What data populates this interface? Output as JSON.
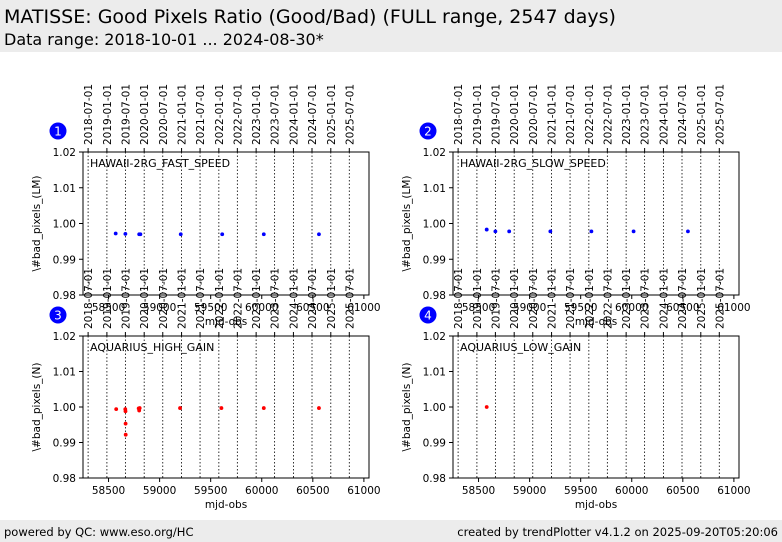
{
  "header": {
    "title": "MATISSE: Good Pixels Ratio (Good/Bad) (FULL range, 2547 days)",
    "subtitle": "Data range: 2018-10-01 ... 2024-08-30*"
  },
  "footer": {
    "left": "powered by QC: www.eso.org/HC",
    "right": "created by trendPlotter v4.1.2 on 2025-09-20T05:20:06"
  },
  "colors": {
    "header_bg": "#ececec",
    "badge": "#0000ff",
    "blue_points": "#0000ff",
    "red_points": "#ff0000"
  },
  "date_ticks": [
    "2018-07-01",
    "2019-01-01",
    "2019-07-01",
    "2020-01-01",
    "2020-07-01",
    "2021-01-01",
    "2021-07-01",
    "2022-01-01",
    "2022-07-01",
    "2023-01-01",
    "2023-07-01",
    "2024-01-01",
    "2024-07-01",
    "2025-01-01",
    "2025-07-01"
  ],
  "date_ticks_mjd": [
    58300,
    58484,
    58665,
    58849,
    59031,
    59215,
    59396,
    59580,
    59761,
    59945,
    60126,
    60310,
    60492,
    60676,
    60857
  ],
  "chart_data": [
    {
      "type": "scatter",
      "panel": "1",
      "label": "HAWAII-2RG_FAST_SPEED",
      "xlabel": "mjd-obs",
      "ylabel": "\\#bad_pixels_(LM)",
      "xlim": [
        58250,
        61050
      ],
      "ylim": [
        0.98,
        1.02
      ],
      "xticks": [
        58500,
        59000,
        59500,
        60000,
        60500,
        61000
      ],
      "yticks": [
        0.98,
        0.99,
        1.0,
        1.01,
        1.02
      ],
      "vlines_mjd": [
        58300,
        58484,
        58665,
        58849,
        59031,
        59215,
        59396,
        59580,
        59761,
        59945,
        60126,
        60310,
        60492,
        60676,
        60857
      ],
      "color": "#0000ff",
      "points": [
        {
          "x": 58570,
          "y": 0.9972
        },
        {
          "x": 58665,
          "y": 0.9971
        },
        {
          "x": 58800,
          "y": 0.997
        },
        {
          "x": 58812,
          "y": 0.997
        },
        {
          "x": 59207,
          "y": 0.997
        },
        {
          "x": 59613,
          "y": 0.997
        },
        {
          "x": 60020,
          "y": 0.997
        },
        {
          "x": 60560,
          "y": 0.997
        }
      ]
    },
    {
      "type": "scatter",
      "panel": "2",
      "label": "HAWAII-2RG_SLOW_SPEED",
      "xlabel": "mjd-obs",
      "ylabel": "\\#bad_pixels_(LM)",
      "xlim": [
        58250,
        61050
      ],
      "ylim": [
        0.98,
        1.02
      ],
      "xticks": [
        58500,
        59000,
        59500,
        60000,
        60500,
        61000
      ],
      "yticks": [
        0.98,
        0.99,
        1.0,
        1.01,
        1.02
      ],
      "vlines_mjd": [
        58300,
        58484,
        58665,
        58849,
        59031,
        59215,
        59396,
        59580,
        59761,
        59945,
        60126,
        60310,
        60492,
        60676,
        60857
      ],
      "color": "#0000ff",
      "points": [
        {
          "x": 58580,
          "y": 0.9983
        },
        {
          "x": 58665,
          "y": 0.9978
        },
        {
          "x": 58800,
          "y": 0.9978
        },
        {
          "x": 59203,
          "y": 0.9978
        },
        {
          "x": 59605,
          "y": 0.9978
        },
        {
          "x": 60018,
          "y": 0.9978
        },
        {
          "x": 60550,
          "y": 0.9978
        }
      ]
    },
    {
      "type": "scatter",
      "panel": "3",
      "label": "AQUARIUS_HIGH_GAIN",
      "xlabel": "mjd-obs",
      "ylabel": "\\#bad_pixels_(N)",
      "xlim": [
        58250,
        61050
      ],
      "ylim": [
        0.98,
        1.02
      ],
      "xticks": [
        58500,
        59000,
        59500,
        60000,
        60500,
        61000
      ],
      "yticks": [
        0.98,
        0.99,
        1.0,
        1.01,
        1.02
      ],
      "vlines_mjd": [
        58300,
        58484,
        58665,
        58849,
        59031,
        59215,
        59396,
        59580,
        59761,
        59945,
        60126,
        60310,
        60492,
        60676,
        60857
      ],
      "color": "#ff0000",
      "points": [
        {
          "x": 58575,
          "y": 0.9994
        },
        {
          "x": 58664,
          "y": 0.9994
        },
        {
          "x": 58666,
          "y": 0.9988
        },
        {
          "x": 58667,
          "y": 0.9953
        },
        {
          "x": 58668,
          "y": 0.9922
        },
        {
          "x": 58795,
          "y": 0.9996
        },
        {
          "x": 58800,
          "y": 0.999
        },
        {
          "x": 58805,
          "y": 0.9997
        },
        {
          "x": 59200,
          "y": 0.9997
        },
        {
          "x": 59605,
          "y": 0.9997
        },
        {
          "x": 60020,
          "y": 0.9997
        },
        {
          "x": 60560,
          "y": 0.9997
        }
      ]
    },
    {
      "type": "scatter",
      "panel": "4",
      "label": "AQUARIUS_LOW_GAIN",
      "xlabel": "mjd-obs",
      "ylabel": "\\#bad_pixels_(N)",
      "xlim": [
        58250,
        61050
      ],
      "ylim": [
        0.98,
        1.02
      ],
      "xticks": [
        58500,
        59000,
        59500,
        60000,
        60500,
        61000
      ],
      "yticks": [
        0.98,
        0.99,
        1.0,
        1.01,
        1.02
      ],
      "vlines_mjd": [
        58300,
        58484,
        58665,
        58849,
        59031,
        59215,
        59396,
        59580,
        59761,
        59945,
        60126,
        60310,
        60492,
        60676,
        60857
      ],
      "color": "#ff0000",
      "points": [
        {
          "x": 58580,
          "y": 1.0
        }
      ]
    }
  ]
}
